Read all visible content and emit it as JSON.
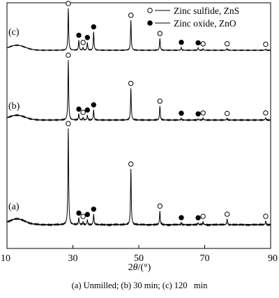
{
  "chart_data": {
    "type": "line",
    "xlabel_parts": [
      "2",
      "θ",
      "/(°)"
    ],
    "xlim": [
      10,
      90
    ],
    "xticks": [
      10,
      30,
      50,
      70,
      90
    ],
    "grid": false,
    "y_axis": "none",
    "legend": {
      "placement": "top-right",
      "entries": [
        {
          "marker": "open-circle",
          "label": "Zinc sulfide, ZnS"
        },
        {
          "marker": "filled-circle",
          "label": "Zinc oxide, ZnO"
        }
      ]
    },
    "caption": "(a) Unmilled; (b) 30 min; (c) 120   min",
    "series": [
      {
        "name": "(a)",
        "amorphous_hump": {
          "center": 13,
          "height": 0.06,
          "width": 3.5
        },
        "peaks": [
          {
            "x": 28.6,
            "h": 1.0,
            "phase": "ZnS"
          },
          {
            "x": 31.8,
            "h": 0.07,
            "phase": "ZnO"
          },
          {
            "x": 33.1,
            "h": 0.03,
            "phase": "ZnS"
          },
          {
            "x": 34.4,
            "h": 0.05,
            "phase": "ZnO"
          },
          {
            "x": 36.3,
            "h": 0.11,
            "phase": "ZnO"
          },
          {
            "x": 47.6,
            "h": 0.58,
            "phase": "ZnS"
          },
          {
            "x": 56.4,
            "h": 0.14,
            "phase": "ZnS"
          },
          {
            "x": 62.9,
            "h": 0.02,
            "phase": "ZnO"
          },
          {
            "x": 68.0,
            "h": 0.02,
            "phase": "ZnO"
          },
          {
            "x": 69.5,
            "h": 0.03,
            "phase": "ZnS"
          },
          {
            "x": 76.8,
            "h": 0.06,
            "phase": "ZnS"
          },
          {
            "x": 88.5,
            "h": 0.04,
            "phase": "ZnS"
          }
        ]
      },
      {
        "name": "(b)",
        "amorphous_hump": {
          "center": 13,
          "height": 0.08,
          "width": 3.5
        },
        "peaks": [
          {
            "x": 28.6,
            "h": 1.0,
            "phase": "ZnS"
          },
          {
            "x": 31.8,
            "h": 0.1,
            "phase": "ZnO"
          },
          {
            "x": 33.1,
            "h": 0.04,
            "phase": "ZnS"
          },
          {
            "x": 34.4,
            "h": 0.08,
            "phase": "ZnO"
          },
          {
            "x": 36.3,
            "h": 0.17,
            "phase": "ZnO"
          },
          {
            "x": 47.6,
            "h": 0.53,
            "phase": "ZnS"
          },
          {
            "x": 56.4,
            "h": 0.23,
            "phase": "ZnS"
          },
          {
            "x": 62.9,
            "h": 0.03,
            "phase": "ZnO"
          },
          {
            "x": 68.0,
            "h": 0.02,
            "phase": "ZnO"
          },
          {
            "x": 69.5,
            "h": 0.03,
            "phase": "ZnS"
          },
          {
            "x": 76.8,
            "h": 0.03,
            "phase": "ZnS"
          },
          {
            "x": 88.5,
            "h": 0.04,
            "phase": "ZnS"
          }
        ]
      },
      {
        "name": "(c)",
        "amorphous_hump": {
          "center": 13,
          "height": 0.12,
          "width": 3.5
        },
        "peaks": [
          {
            "x": 28.6,
            "h": 1.0,
            "phase": "ZnS"
          },
          {
            "x": 31.8,
            "h": 0.24,
            "phase": "ZnO"
          },
          {
            "x": 33.1,
            "h": 0.06,
            "phase": "ZnS"
          },
          {
            "x": 34.4,
            "h": 0.18,
            "phase": "ZnO"
          },
          {
            "x": 36.3,
            "h": 0.44,
            "phase": "ZnO"
          },
          {
            "x": 47.6,
            "h": 0.72,
            "phase": "ZnS"
          },
          {
            "x": 56.4,
            "h": 0.28,
            "phase": "ZnS"
          },
          {
            "x": 62.9,
            "h": 0.07,
            "phase": "ZnO"
          },
          {
            "x": 68.0,
            "h": 0.06,
            "phase": "ZnO"
          },
          {
            "x": 69.5,
            "h": 0.03,
            "phase": "ZnS"
          },
          {
            "x": 76.8,
            "h": 0.04,
            "phase": "ZnS"
          },
          {
            "x": 88.5,
            "h": 0.03,
            "phase": "ZnS"
          }
        ]
      }
    ]
  }
}
